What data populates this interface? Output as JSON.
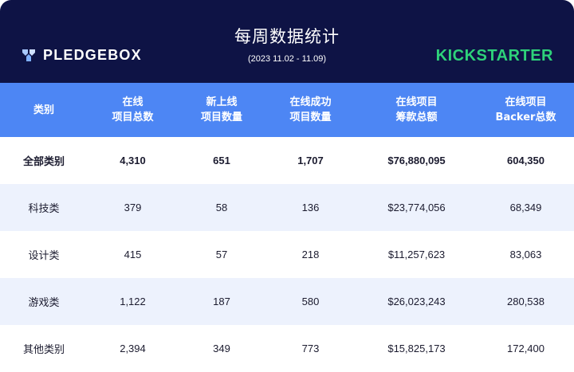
{
  "header": {
    "brand_left": "PLEDGEBOX",
    "title": "每周数据统计",
    "subtitle": "(2023 11.02 - 11.09)",
    "brand_right": "KICKSTARTER"
  },
  "colors": {
    "header_bg": "#0e1345",
    "column_header_bg": "#4d86f4",
    "alt_row_bg": "#edf2fd",
    "kickstarter_green": "#2ed27a"
  },
  "table": {
    "columns": [
      "类别",
      "在线\n项目总数",
      "新上线\n项目数量",
      "在线成功\n项目数量",
      "在线项目\n筹款总额",
      "在线项目\nBacker总数"
    ],
    "rows": [
      [
        "全部类别",
        "4,310",
        "651",
        "1,707",
        "$76,880,095",
        "604,350"
      ],
      [
        "科技类",
        "379",
        "58",
        "136",
        "$23,774,056",
        "68,349"
      ],
      [
        "设计类",
        "415",
        "57",
        "218",
        "$11,257,623",
        "83,063"
      ],
      [
        "游戏类",
        "1,122",
        "187",
        "580",
        "$26,023,243",
        "280,538"
      ],
      [
        "其他类别",
        "2,394",
        "349",
        "773",
        "$15,825,173",
        "172,400"
      ]
    ]
  }
}
